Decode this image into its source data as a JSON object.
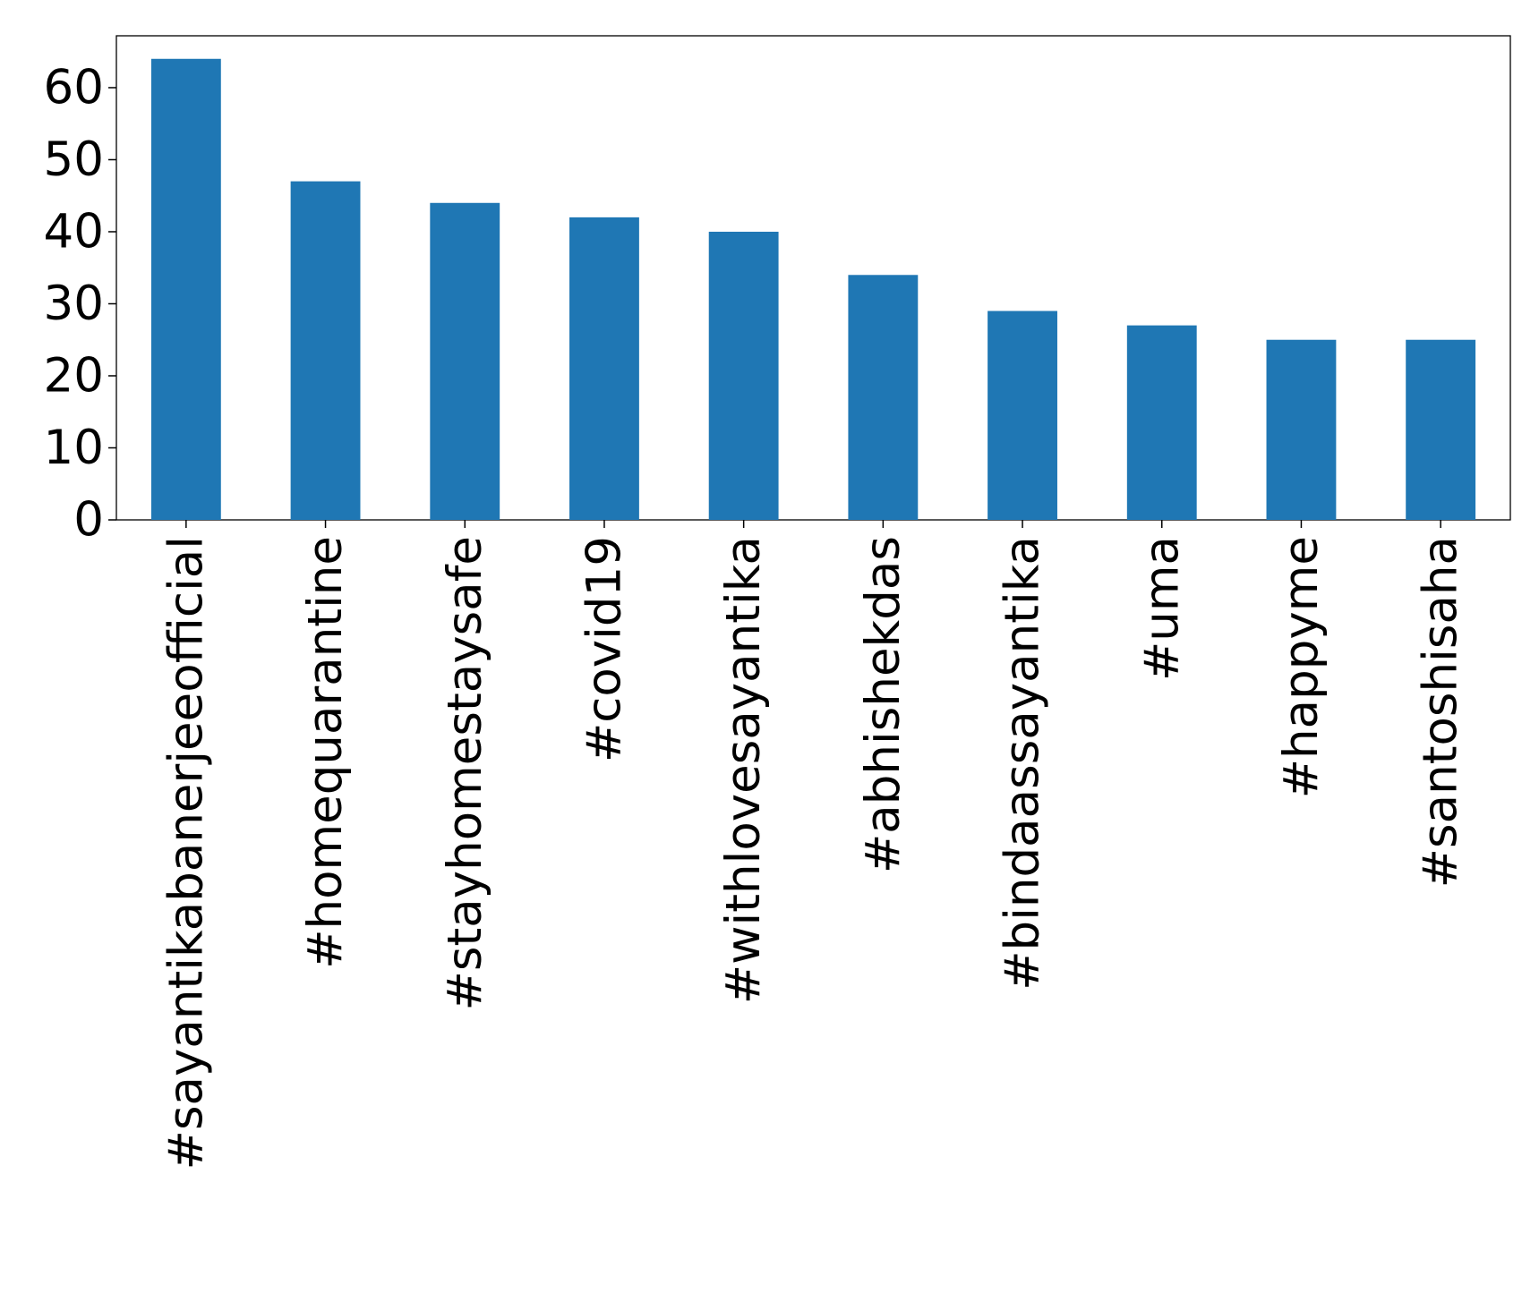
{
  "chart_data": {
    "type": "bar",
    "categories": [
      "#sayantikabanerjeeofficial",
      "#homequarantine",
      "#stayhomestaysafe",
      "#covid19",
      "#withlovesayantika",
      "#abhishekdas",
      "#bindaassayantika",
      "#uma",
      "#happyme",
      "#santoshisaha"
    ],
    "values": [
      64,
      47,
      44,
      42,
      40,
      34,
      29,
      27,
      25,
      25
    ],
    "color": "#1f77b4",
    "ylim": [
      0,
      67.2
    ],
    "yticks": [
      0,
      10,
      20,
      30,
      40,
      50,
      60
    ],
    "grid": false
  }
}
